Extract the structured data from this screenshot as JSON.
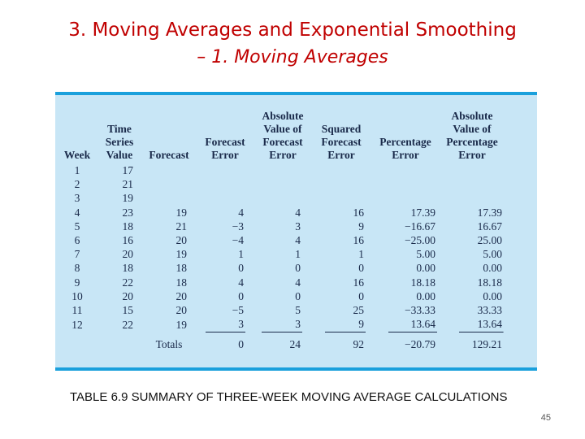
{
  "title_line1": "3. Moving Averages and Exponential Smoothing",
  "title_line2": "– 1. Moving Averages",
  "table": {
    "headers": [
      "Week",
      "Time\nSeries\nValue",
      "Forecast",
      "Forecast\nError",
      "Absolute\nValue of\nForecast\nError",
      "Squared\nForecast\nError",
      "Percentage\nError",
      "Absolute\nValue of\nPercentage\nError"
    ],
    "rows": [
      [
        "1",
        "17",
        "",
        "",
        "",
        "",
        "",
        ""
      ],
      [
        "2",
        "21",
        "",
        "",
        "",
        "",
        "",
        ""
      ],
      [
        "3",
        "19",
        "",
        "",
        "",
        "",
        "",
        ""
      ],
      [
        "4",
        "23",
        "19",
        "4",
        "4",
        "16",
        "17.39",
        "17.39"
      ],
      [
        "5",
        "18",
        "21",
        "−3",
        "3",
        "9",
        "−16.67",
        "16.67"
      ],
      [
        "6",
        "16",
        "20",
        "−4",
        "4",
        "16",
        "−25.00",
        "25.00"
      ],
      [
        "7",
        "20",
        "19",
        "1",
        "1",
        "1",
        "5.00",
        "5.00"
      ],
      [
        "8",
        "18",
        "18",
        "0",
        "0",
        "0",
        "0.00",
        "0.00"
      ],
      [
        "9",
        "22",
        "18",
        "4",
        "4",
        "16",
        "18.18",
        "18.18"
      ],
      [
        "10",
        "20",
        "20",
        "0",
        "0",
        "0",
        "0.00",
        "0.00"
      ],
      [
        "11",
        "15",
        "20",
        "−5",
        "5",
        "25",
        "−33.33",
        "33.33"
      ],
      [
        "12",
        "22",
        "19",
        "3",
        "3",
        "9",
        "13.64",
        "13.64"
      ]
    ],
    "totals_label": "Totals",
    "totals": [
      "0",
      "24",
      "92",
      "−20.79",
      "129.21"
    ]
  },
  "caption": "TABLE 6.9 SUMMARY OF THREE-WEEK MOVING AVERAGE CALCULATIONS",
  "page_number": "45",
  "colors": {
    "title": "#c00000",
    "panel": "#c8e6f6",
    "rule": "#1aa0dc"
  }
}
